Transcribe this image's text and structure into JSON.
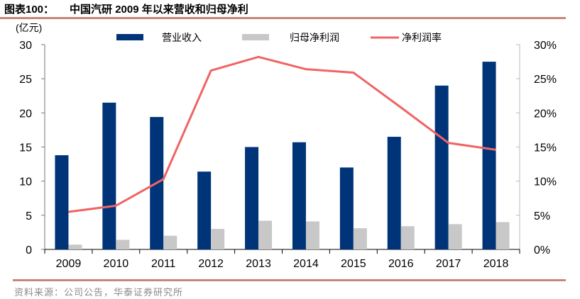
{
  "header": {
    "figure_number": "图表100：",
    "title": "中国汽研 2009 年以来营收和归母净利"
  },
  "footer": {
    "source": "资料来源：公司公告，华泰证券研究所"
  },
  "colors": {
    "revenue": "#003478",
    "net_profit": "#c8c8c8",
    "net_margin": "#f06464",
    "rule": "#c8867a"
  },
  "chart_data": {
    "type": "bar",
    "title": "中国汽研 2009 年以来营收和归母净利",
    "xlabel": "",
    "ylabel": "(亿元)",
    "ylabel_right": "",
    "categories": [
      "2009",
      "2010",
      "2011",
      "2012",
      "2013",
      "2014",
      "2015",
      "2016",
      "2017",
      "2018"
    ],
    "series": [
      {
        "name": "营业收入",
        "type": "bar",
        "axis": "left",
        "values": [
          13.8,
          21.5,
          19.4,
          11.4,
          15.0,
          15.7,
          12.0,
          16.5,
          24.0,
          27.5
        ]
      },
      {
        "name": "归母净利润",
        "type": "bar",
        "axis": "left",
        "values": [
          0.7,
          1.4,
          2.0,
          3.0,
          4.2,
          4.1,
          3.1,
          3.4,
          3.7,
          4.0
        ]
      },
      {
        "name": "净利润率",
        "type": "line",
        "axis": "right",
        "unit": "%",
        "values": [
          5.5,
          6.4,
          10.3,
          26.2,
          28.2,
          26.4,
          25.9,
          20.8,
          15.6,
          14.6
        ]
      }
    ],
    "ylim": [
      0,
      30
    ],
    "ylim_right": [
      0,
      30
    ],
    "yticks": [
      "0",
      "5",
      "10",
      "15",
      "20",
      "25",
      "30"
    ],
    "yticks_right": [
      "0%",
      "5%",
      "10%",
      "15%",
      "20%",
      "25%",
      "30%"
    ],
    "legend": [
      "营业收入",
      "归母净利润",
      "净利润率"
    ],
    "legend_position": "top",
    "grid": false
  }
}
